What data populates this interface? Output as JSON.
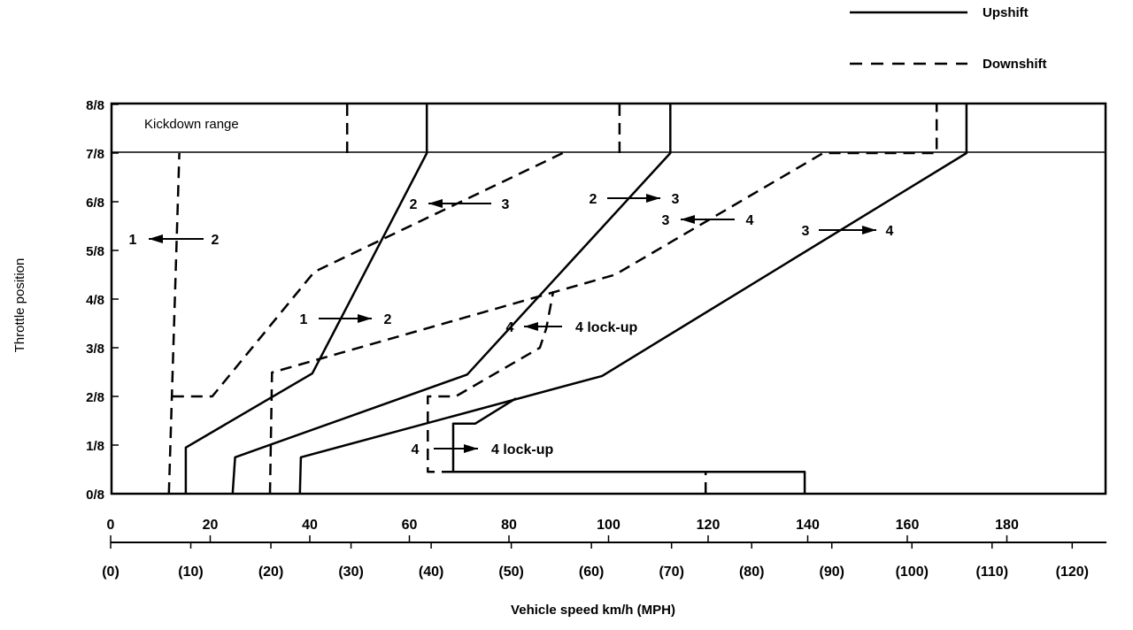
{
  "chart_data": {
    "type": "line",
    "title": "",
    "xlabel": "Vehicle speed km/h (MPH)",
    "ylabel": "Throttle position",
    "xlim": [
      0,
      200
    ],
    "ylim": [
      0,
      8
    ],
    "x_ticks": [
      "0",
      "20",
      "40",
      "60",
      "80",
      "100",
      "120",
      "140",
      "160",
      "180"
    ],
    "x_tick_values": [
      0,
      20,
      40,
      60,
      80,
      100,
      120,
      140,
      160,
      180
    ],
    "x_ticks_mph": [
      "(0)",
      "(10)",
      "(20)",
      "(30)",
      "(40)",
      "(50)",
      "(60)",
      "(70)",
      "(80)",
      "(90)",
      "(100)",
      "(110)",
      "(120)"
    ],
    "x_tick_values_mph": [
      0,
      10,
      20,
      30,
      40,
      50,
      60,
      70,
      80,
      90,
      100,
      110,
      120
    ],
    "y_ticks": [
      "0/8",
      "1/8",
      "2/8",
      "3/8",
      "4/8",
      "5/8",
      "6/8",
      "7/8",
      "8/8"
    ],
    "region_label": "Kickdown range",
    "legend": {
      "position": "top-right",
      "items": [
        {
          "label": "Upshift",
          "style": "solid"
        },
        {
          "label": "Downshift",
          "style": "dashed"
        }
      ]
    },
    "series": [
      {
        "name": "Upshift 1-2",
        "style": "solid",
        "points": [
          [
            15.1,
            0
          ],
          [
            15.1,
            0.95
          ],
          [
            40.5,
            2.47
          ],
          [
            63.5,
            7
          ],
          [
            63.5,
            8
          ]
        ]
      },
      {
        "name": "Upshift 2-3",
        "style": "solid",
        "points": [
          [
            24.5,
            0
          ],
          [
            25,
            0.75
          ],
          [
            71.6,
            2.45
          ],
          [
            112.4,
            7
          ],
          [
            112.4,
            8
          ]
        ]
      },
      {
        "name": "Upshift 3-4",
        "style": "solid",
        "points": [
          [
            38,
            0
          ],
          [
            38.2,
            0.75
          ],
          [
            98.7,
            2.42
          ],
          [
            171.9,
            7
          ],
          [
            171.9,
            8
          ]
        ]
      },
      {
        "name": "Upshift 4 lock-up",
        "style": "solid",
        "points": [
          [
            139.4,
            0
          ],
          [
            139.4,
            0.45
          ],
          [
            68.8,
            0.45
          ],
          [
            68.8,
            1.44
          ],
          [
            73.2,
            1.44
          ],
          [
            81.4,
            1.96
          ]
        ]
      },
      {
        "name": "Downshift 2-1",
        "style": "dashed",
        "points": [
          [
            11.7,
            0
          ],
          [
            13.8,
            7
          ]
        ]
      },
      {
        "name": "Downshift 2-1 kickdown",
        "style": "dashed",
        "points": [
          [
            47.5,
            7
          ],
          [
            47.5,
            8
          ]
        ]
      },
      {
        "name": "Downshift 3-2",
        "style": "dashed",
        "points": [
          [
            12.4,
            2
          ],
          [
            20.4,
            2
          ],
          [
            40.9,
            4.56
          ],
          [
            90.8,
            7
          ]
        ]
      },
      {
        "name": "Downshift 3-2 kickdown",
        "style": "dashed",
        "points": [
          [
            102.2,
            7
          ],
          [
            102.2,
            8
          ]
        ]
      },
      {
        "name": "Downshift 4-3",
        "style": "dashed",
        "points": [
          [
            32,
            0
          ],
          [
            32.4,
            2.49
          ],
          [
            101.3,
            4.5
          ],
          [
            143.1,
            7
          ],
          [
            165.9,
            7
          ],
          [
            165.9,
            8
          ]
        ]
      },
      {
        "name": "Downshift 4 lock-up",
        "style": "dashed",
        "points": [
          [
            68.8,
            0.45
          ],
          [
            63.7,
            0.45
          ],
          [
            63.7,
            2
          ],
          [
            69.3,
            2
          ],
          [
            86.2,
            3
          ],
          [
            87.5,
            3.4
          ],
          [
            88.9,
            4.16
          ]
        ]
      },
      {
        "name": "Downshift 4 lock-up low",
        "style": "dashed",
        "points": [
          [
            119.5,
            0
          ],
          [
            119.5,
            0.45
          ]
        ]
      }
    ],
    "annotations": [
      {
        "from": "1",
        "to": "2",
        "direction": "left"
      },
      {
        "from": "2",
        "to": "3",
        "direction": "left"
      },
      {
        "from": "2",
        "to": "3",
        "direction": "right"
      },
      {
        "from": "3",
        "to": "4",
        "direction": "left"
      },
      {
        "from": "3",
        "to": "4",
        "direction": "right"
      },
      {
        "from": "1",
        "to": "2",
        "direction": "right"
      },
      {
        "from": "4",
        "to": "4 lock-up",
        "direction": "left"
      },
      {
        "from": "4",
        "to": "4 lock-up",
        "direction": "right"
      }
    ]
  }
}
